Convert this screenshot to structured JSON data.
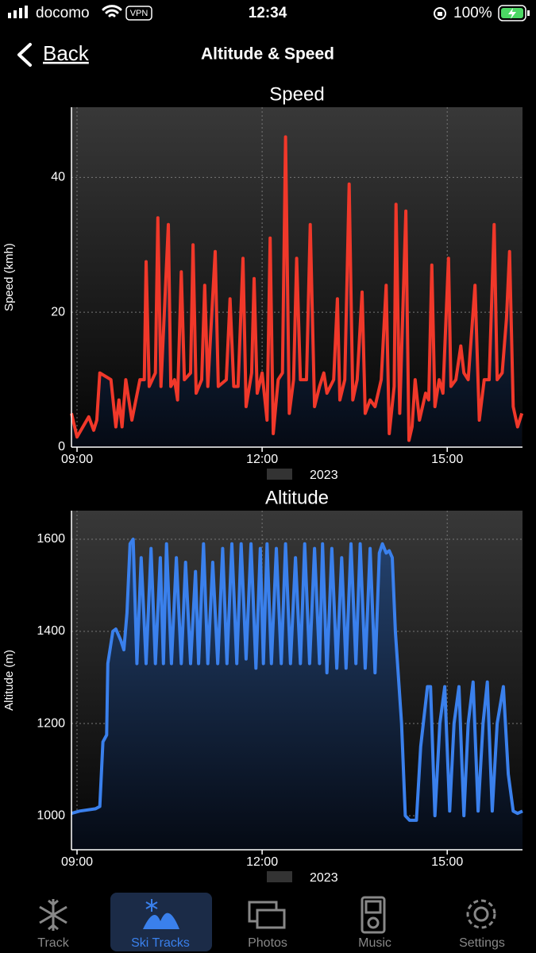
{
  "status_bar": {
    "carrier": "docomo",
    "vpn": "VPN",
    "time": "12:34",
    "battery": "100%"
  },
  "nav": {
    "back": "Back",
    "title": "Altitude & Speed"
  },
  "chart_data": [
    {
      "type": "line",
      "title": "Speed",
      "y_label": "Speed (kmh)",
      "x_label": "2023",
      "xlim": [
        8.91,
        16.22
      ],
      "xticks": [
        {
          "value": 9,
          "label": "09:00"
        },
        {
          "value": 12,
          "label": "12:00"
        },
        {
          "value": 15,
          "label": "15:00"
        }
      ],
      "ylim": [
        0,
        50.4
      ],
      "yticks": [
        0,
        20,
        40
      ],
      "grid": true,
      "x": [
        8.91,
        9.0,
        9.19,
        9.27,
        9.32,
        9.37,
        9.55,
        9.63,
        9.68,
        9.73,
        9.79,
        9.89,
        10.02,
        10.09,
        10.12,
        10.17,
        10.27,
        10.31,
        10.36,
        10.48,
        10.52,
        10.58,
        10.63,
        10.69,
        10.74,
        10.84,
        10.88,
        10.93,
        11.02,
        11.07,
        11.12,
        11.24,
        11.29,
        11.42,
        11.48,
        11.54,
        11.61,
        11.69,
        11.74,
        11.83,
        11.87,
        11.92,
        12.0,
        12.08,
        12.13,
        12.18,
        12.26,
        12.33,
        12.38,
        12.44,
        12.51,
        12.56,
        12.62,
        12.72,
        12.78,
        12.85,
        12.93,
        13.0,
        13.05,
        13.16,
        13.22,
        13.26,
        13.34,
        13.41,
        13.47,
        13.54,
        13.62,
        13.67,
        13.75,
        13.83,
        13.93,
        14.01,
        14.06,
        14.14,
        14.17,
        14.23,
        14.33,
        14.38,
        14.43,
        14.48,
        14.55,
        14.65,
        14.7,
        14.75,
        14.8,
        14.87,
        14.93,
        15.02,
        15.06,
        15.14,
        15.22,
        15.27,
        15.34,
        15.45,
        15.52,
        15.6,
        15.68,
        15.76,
        15.81,
        15.89,
        15.96,
        16.01,
        16.07,
        16.14,
        16.21
      ],
      "series": [
        {
          "color": "#f0382a",
          "values": [
            5,
            1.5,
            4.5,
            2.5,
            4,
            11,
            10,
            3,
            7,
            3,
            10,
            4,
            10,
            10,
            27.5,
            9,
            11,
            34,
            9,
            33,
            9,
            10,
            7,
            26,
            10,
            11,
            30,
            8,
            10,
            24,
            9,
            29,
            9,
            10,
            22,
            9,
            9,
            28,
            6,
            11,
            25,
            8,
            11,
            4,
            31,
            2,
            10,
            11,
            46,
            5,
            10,
            28,
            10,
            10,
            33,
            6,
            9,
            11,
            8,
            10,
            22,
            7,
            10,
            39,
            7,
            10,
            23,
            5,
            7,
            6,
            10,
            24,
            2,
            9,
            36,
            5,
            35,
            1,
            3,
            10,
            4,
            8,
            7,
            27,
            6,
            10,
            8,
            28,
            9,
            10,
            15,
            11,
            10,
            24,
            4,
            10,
            10,
            33,
            10,
            11,
            19,
            29,
            6,
            3,
            5
          ]
        }
      ]
    },
    {
      "type": "line",
      "title": "Altitude",
      "y_label": "Altitude (m)",
      "x_label": "2023",
      "xlim": [
        8.91,
        16.22
      ],
      "xticks": [
        {
          "value": 9,
          "label": "09:00"
        },
        {
          "value": 12,
          "label": "12:00"
        },
        {
          "value": 15,
          "label": "15:00"
        }
      ],
      "ylim": [
        926,
        1662
      ],
      "yticks": [
        1000,
        1200,
        1400,
        1600
      ],
      "grid": true,
      "x": [
        8.91,
        9.04,
        9.3,
        9.37,
        9.42,
        9.48,
        9.5,
        9.58,
        9.63,
        9.71,
        9.76,
        9.81,
        9.86,
        9.91,
        9.97,
        10.04,
        10.12,
        10.2,
        10.27,
        10.35,
        10.4,
        10.45,
        10.53,
        10.61,
        10.69,
        10.76,
        10.84,
        10.92,
        10.97,
        11.05,
        11.12,
        11.2,
        11.28,
        11.36,
        11.43,
        11.51,
        11.59,
        11.66,
        11.74,
        11.82,
        11.9,
        11.97,
        12.02,
        12.08,
        12.15,
        12.23,
        12.31,
        12.38,
        12.46,
        12.54,
        12.62,
        12.69,
        12.77,
        12.85,
        12.93,
        12.98,
        13.05,
        13.13,
        13.21,
        13.29,
        13.36,
        13.44,
        13.52,
        13.59,
        13.67,
        13.75,
        13.83,
        13.9,
        13.95,
        14.01,
        14.06,
        14.11,
        14.16,
        14.26,
        14.32,
        14.39,
        14.5,
        14.57,
        14.68,
        14.73,
        14.8,
        14.88,
        14.96,
        15.04,
        15.11,
        15.19,
        15.27,
        15.34,
        15.42,
        15.5,
        15.58,
        15.65,
        15.73,
        15.81,
        15.91,
        15.99,
        16.07,
        16.14,
        16.22
      ],
      "series": [
        {
          "color": "#3a80ec",
          "values": [
            1005,
            1010,
            1015,
            1020,
            1160,
            1175,
            1330,
            1400,
            1405,
            1380,
            1360,
            1440,
            1590,
            1600,
            1330,
            1560,
            1330,
            1580,
            1330,
            1560,
            1330,
            1590,
            1330,
            1560,
            1330,
            1550,
            1330,
            1530,
            1330,
            1590,
            1330,
            1550,
            1330,
            1580,
            1330,
            1590,
            1330,
            1590,
            1340,
            1590,
            1320,
            1580,
            1330,
            1590,
            1330,
            1580,
            1330,
            1590,
            1330,
            1560,
            1330,
            1590,
            1330,
            1580,
            1330,
            1590,
            1310,
            1580,
            1320,
            1560,
            1320,
            1590,
            1330,
            1590,
            1320,
            1580,
            1310,
            1570,
            1590,
            1570,
            1575,
            1560,
            1400,
            1200,
            1000,
            990,
            990,
            1150,
            1280,
            1280,
            1000,
            1200,
            1280,
            1010,
            1200,
            1280,
            1000,
            1200,
            1290,
            1010,
            1200,
            1290,
            1010,
            1200,
            1280,
            1090,
            1010,
            1005,
            1010
          ]
        }
      ]
    }
  ],
  "tabs": [
    "Track",
    "Ski Tracks",
    "Photos",
    "Music",
    "Settings"
  ]
}
